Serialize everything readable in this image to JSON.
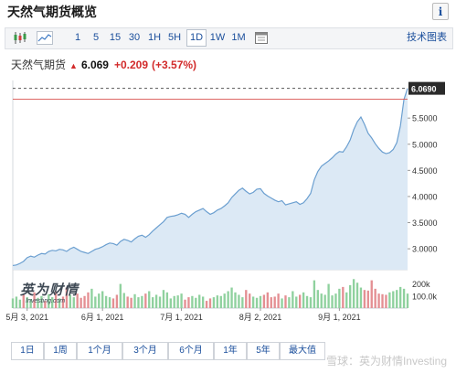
{
  "header": {
    "title": "天然气期货概览",
    "info_label": "i"
  },
  "toolbar": {
    "intervals": [
      "1",
      "5",
      "15",
      "30",
      "1H",
      "5H",
      "1D",
      "1W",
      "1M"
    ],
    "active_interval": "1D",
    "right_link": "技术图表",
    "icons": [
      "candlestick-icon",
      "line-chart-icon",
      "calendar-icon"
    ]
  },
  "quote": {
    "name": "天然气期货",
    "price": "6.069",
    "change": "+0.209",
    "change_pct": "(+3.57%)",
    "up_color": "#d22b2b"
  },
  "range_buttons": [
    "1日",
    "1周",
    "1个月",
    "3个月",
    "6个月",
    "1年",
    "5年",
    "最大值"
  ],
  "logo": {
    "text": "英为财情",
    "sub": "Investing.com"
  },
  "watermark": "雪球：英为财情Investing",
  "chart_data": {
    "type": "area",
    "ylim": [
      2.6,
      6.15
    ],
    "yticks": [
      "3.0000",
      "3.5000",
      "4.0000",
      "4.5000",
      "5.0000",
      "5.5000"
    ],
    "ytick_values": [
      3.0,
      3.5,
      4.0,
      4.5,
      5.0,
      5.5
    ],
    "last_label": "6.0690",
    "last_value": 6.069,
    "reference_value": 5.86,
    "xticks": [
      "5月 3, 2021",
      "6月 1, 2021",
      "7月 1, 2021",
      "8月 2, 2021",
      "9月 1, 2021"
    ],
    "xtick_index": [
      4,
      25,
      47,
      69,
      91
    ],
    "volume_ticks": [
      "200k",
      "100.0k"
    ],
    "volume_tick_values": [
      200000,
      100000
    ],
    "volume_max": 280000,
    "colors": {
      "line": "#6b9fd0",
      "fill": "#dce9f5",
      "vol_up": "#8fd19e",
      "vol_down": "#e48f93"
    },
    "price": [
      2.68,
      2.69,
      2.72,
      2.76,
      2.83,
      2.86,
      2.84,
      2.88,
      2.91,
      2.9,
      2.95,
      2.97,
      2.96,
      2.99,
      2.98,
      2.95,
      3.0,
      3.03,
      2.99,
      2.95,
      2.93,
      2.91,
      2.95,
      2.99,
      3.01,
      3.04,
      3.08,
      3.11,
      3.1,
      3.07,
      3.14,
      3.18,
      3.16,
      3.13,
      3.19,
      3.24,
      3.26,
      3.22,
      3.27,
      3.34,
      3.4,
      3.46,
      3.52,
      3.6,
      3.62,
      3.63,
      3.65,
      3.68,
      3.66,
      3.6,
      3.66,
      3.71,
      3.74,
      3.77,
      3.71,
      3.66,
      3.69,
      3.74,
      3.77,
      3.82,
      3.88,
      3.98,
      4.05,
      4.12,
      4.16,
      4.1,
      4.05,
      4.08,
      4.14,
      4.15,
      4.06,
      4.01,
      3.97,
      3.93,
      3.9,
      3.92,
      3.84,
      3.86,
      3.88,
      3.9,
      3.85,
      3.88,
      3.96,
      4.06,
      4.32,
      4.48,
      4.58,
      4.63,
      4.68,
      4.74,
      4.81,
      4.86,
      4.85,
      4.95,
      5.08,
      5.28,
      5.43,
      5.52,
      5.38,
      5.21,
      5.12,
      5.01,
      4.92,
      4.85,
      4.82,
      4.84,
      4.9,
      5.03,
      5.35,
      5.86,
      6.069
    ],
    "volume_up": [
      true,
      true,
      true,
      false,
      true,
      true,
      false,
      true,
      true,
      false,
      true,
      true,
      false,
      true,
      false,
      false,
      true,
      true,
      false,
      false,
      false,
      false,
      true,
      true,
      true,
      true,
      true,
      true,
      false,
      false,
      true,
      true,
      false,
      false,
      true,
      true,
      true,
      false,
      true,
      true,
      true,
      true,
      true,
      true,
      true,
      true,
      true,
      true,
      false,
      false,
      true,
      true,
      true,
      true,
      false,
      false,
      true,
      true,
      true,
      true,
      true,
      true,
      true,
      true,
      true,
      false,
      false,
      true,
      true,
      true,
      false,
      false,
      false,
      false,
      false,
      true,
      false,
      true,
      true,
      true,
      false,
      true,
      true,
      true,
      true,
      true,
      true,
      true,
      true,
      true,
      true,
      true,
      false,
      true,
      true,
      true,
      true,
      true,
      false,
      false,
      false,
      false,
      false,
      false,
      false,
      true,
      true,
      true,
      true,
      true,
      true
    ],
    "volume": [
      80000,
      95000,
      70000,
      110000,
      90000,
      75000,
      130000,
      85000,
      100000,
      60000,
      115000,
      90000,
      140000,
      80000,
      95000,
      170000,
      110000,
      90000,
      120000,
      85000,
      100000,
      130000,
      160000,
      95000,
      120000,
      140000,
      100000,
      90000,
      80000,
      110000,
      200000,
      125000,
      95000,
      85000,
      115000,
      90000,
      100000,
      120000,
      140000,
      90000,
      110000,
      95000,
      150000,
      130000,
      80000,
      100000,
      105000,
      120000,
      70000,
      90000,
      100000,
      85000,
      110000,
      95000,
      60000,
      80000,
      90000,
      105000,
      100000,
      120000,
      140000,
      170000,
      130000,
      110000,
      90000,
      150000,
      120000,
      95000,
      85000,
      100000,
      110000,
      130000,
      90000,
      95000,
      120000,
      80000,
      105000,
      90000,
      140000,
      95000,
      110000,
      130000,
      100000,
      90000,
      230000,
      150000,
      120000,
      110000,
      200000,
      105000,
      120000,
      160000,
      175000,
      130000,
      190000,
      240000,
      210000,
      170000,
      150000,
      145000,
      230000,
      160000,
      120000,
      115000,
      110000,
      130000,
      140000,
      150000,
      175000,
      160000,
      120000
    ]
  }
}
